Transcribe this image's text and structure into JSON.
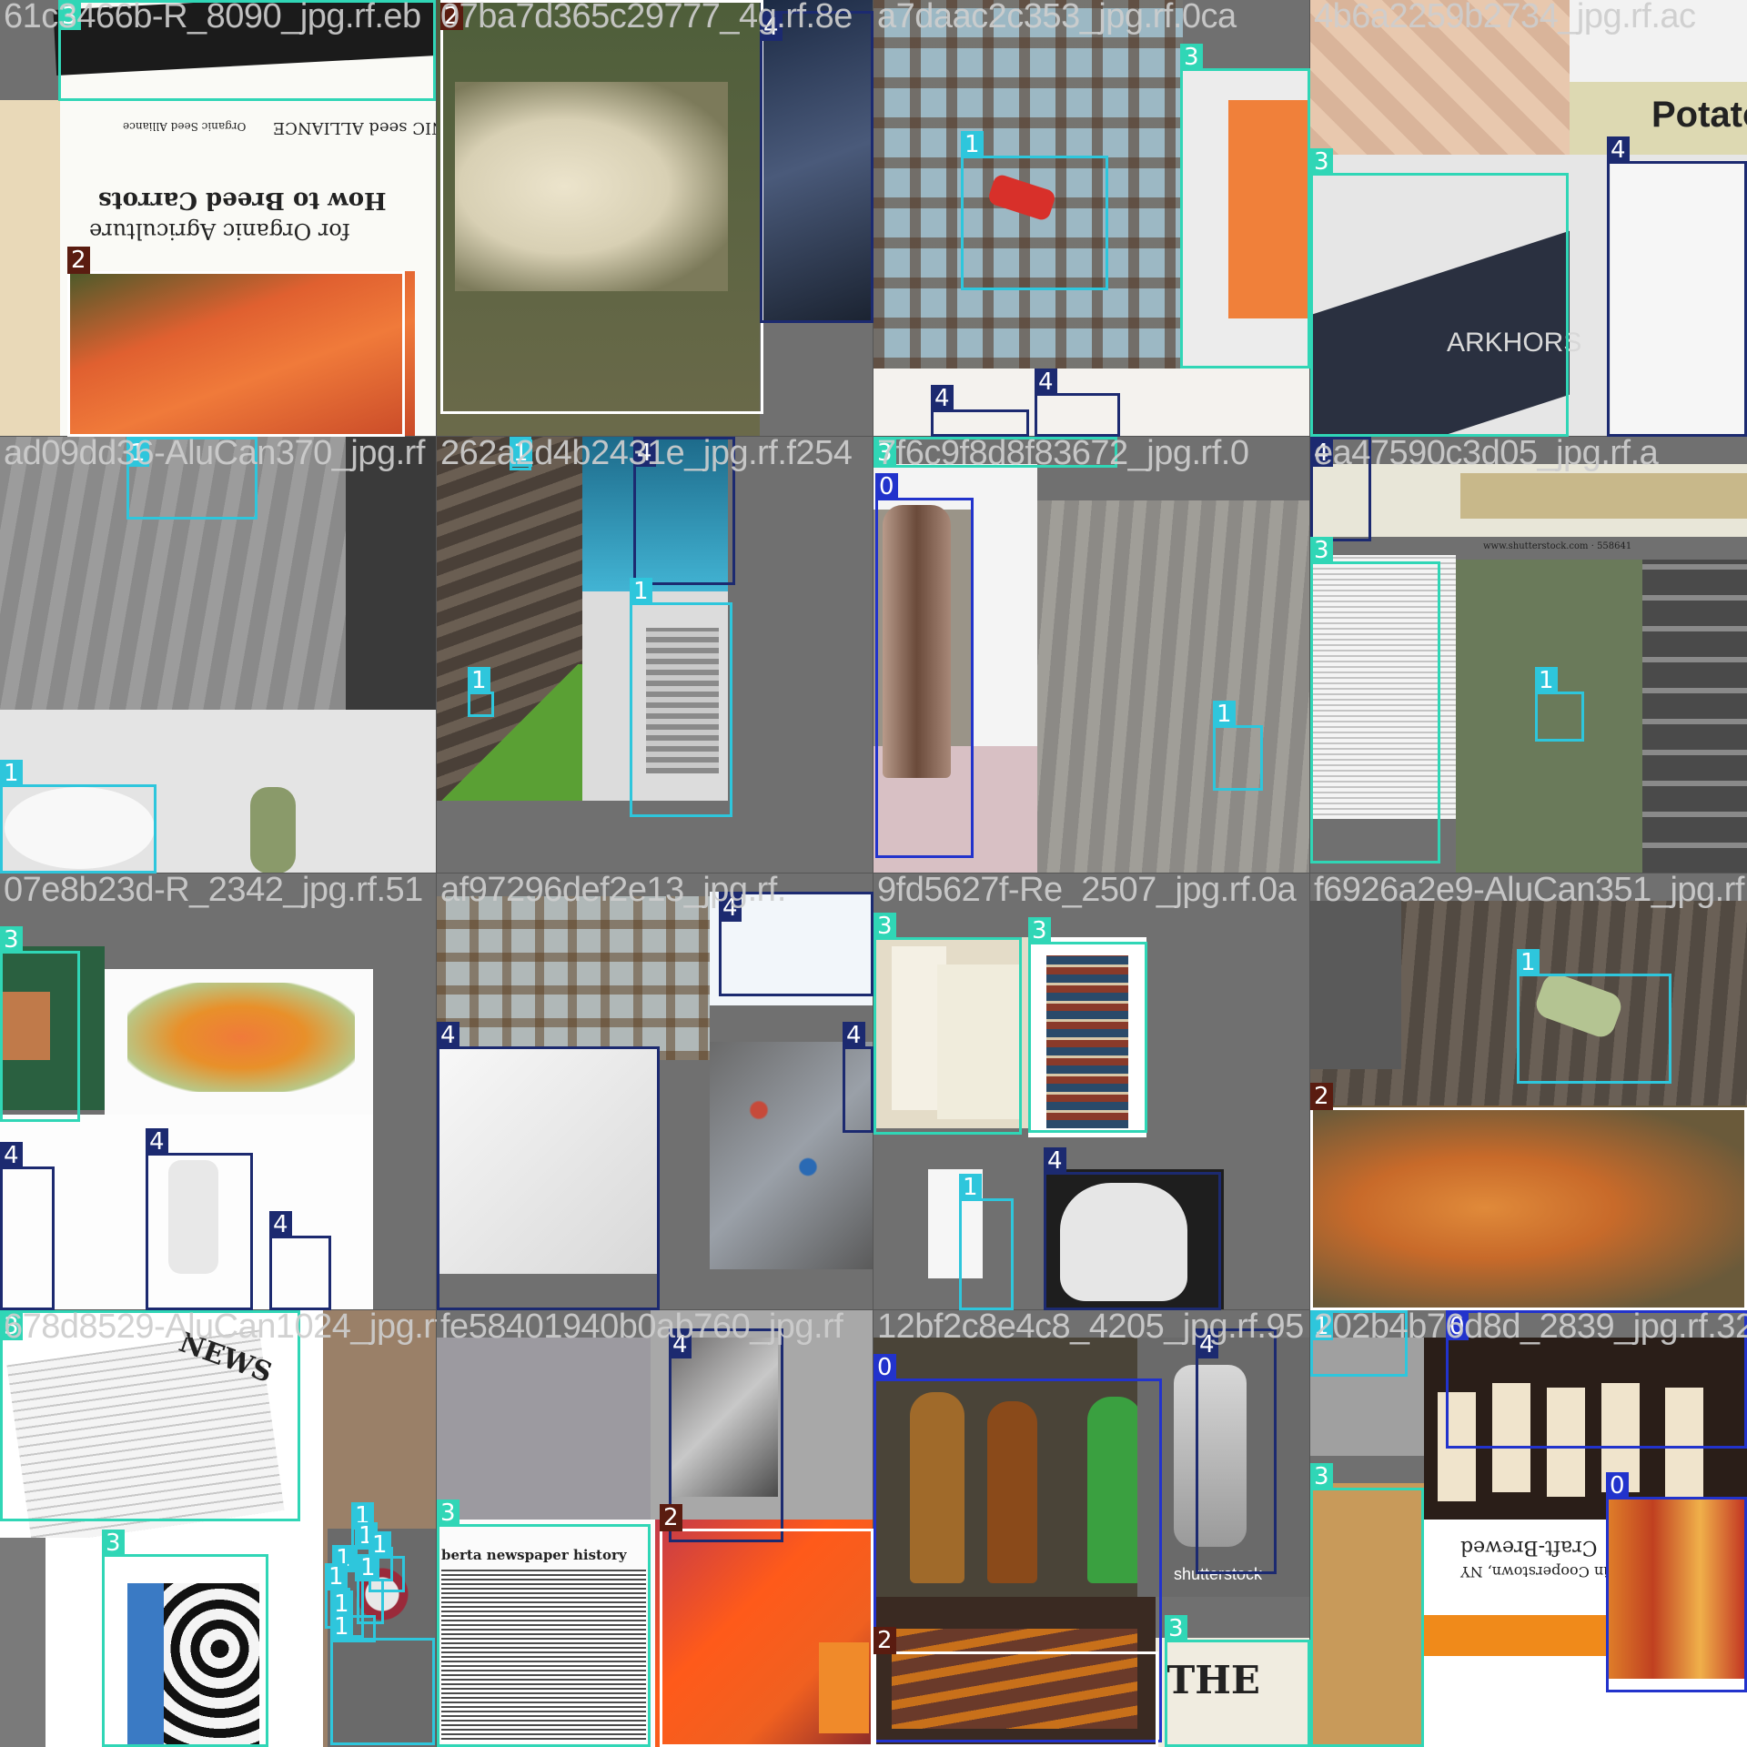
{
  "tiles": [
    {
      "title": "61c3466b-R_8090_jpg.rf.eb"
    },
    {
      "title": "07ba7d365c29777_4g.rf.8e"
    },
    {
      "title": "a7daac2c353_jpg.rf.0ca"
    },
    {
      "title": "4b6a2259b2734_jpg.rf.ac"
    },
    {
      "title": "ad09dd36-AluCan370_jpg.rf"
    },
    {
      "title": "262a2d4b2431e_jpg.rf.f254"
    },
    {
      "title": "7f6c9f8d8f83672_jpg.rf.0"
    },
    {
      "title": "ea47590c3d05_jpg.rf.a"
    },
    {
      "title": "07e8b23d-R_2342_jpg.rf.51"
    },
    {
      "title": "af97296def2e13_jpg.rf."
    },
    {
      "title": "9fd5627f-Re_2507_jpg.rf.0a"
    },
    {
      "title": "f6926a2e9-AluCan351_jpg.rf"
    },
    {
      "title": "678d8529-AluCan1024_jpg.rf"
    },
    {
      "title": "fe58401940b0ab760_jpg.rf"
    },
    {
      "title": "12bf2c8e4c8_4205_jpg.rf.95"
    },
    {
      "title": "202b4b76d8d_2839_jpg.rf.32"
    }
  ],
  "class_colors": {
    "0": "#2233cc",
    "1": "#2ec6dc",
    "2": "#ffffff",
    "3": "#30d6b6",
    "4": "#1c2a70"
  },
  "label_bg": {
    "0": "#2233cc",
    "1": "#2ec6dc",
    "2": "#5a1c10",
    "3": "#30d6b6",
    "4": "#1c2a70"
  },
  "texts": {
    "seed_logo": "ORGANIC seed ALLIANCE",
    "seed_org": "Organic Seed Alliance",
    "book_title": "How to Breed Carrots",
    "book_subtitle": "for Organic Agriculture",
    "potato": "Potato",
    "news_heading": "berta newspaper history",
    "shutterstock": "shutterstock",
    "shutterstock_url": "www.shutterstock.com · 558641",
    "the": "THE",
    "craft": "Craft-Brewed",
    "cooperstown": "in Cooperstown, NY",
    "news": "NEWS",
    "dark_horse": "ARKHORS"
  }
}
